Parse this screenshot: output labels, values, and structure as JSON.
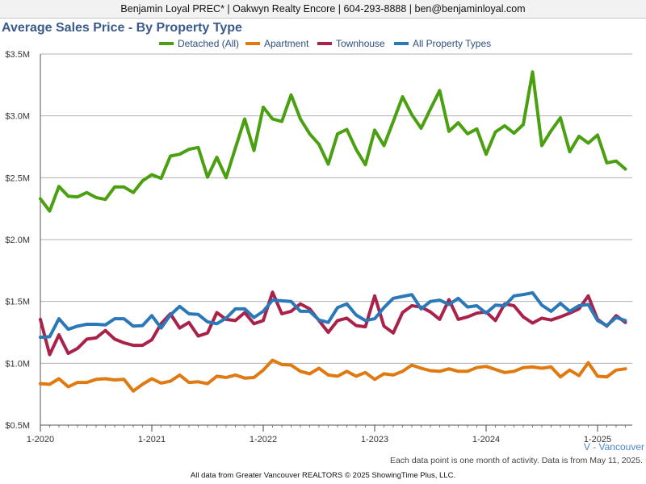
{
  "header": {
    "contact_line": "Benjamin Loyal PREC* | Oakwyn Realty Encore | 604-293-8888 | ben@benjaminloyal.com"
  },
  "footer": {
    "note": "Each data point is one month of activity. Data is from May 11, 2025.",
    "source": "All data from Greater Vancouver REALTORS © 2025 ShowingTime Plus, LLC."
  },
  "chart_data": {
    "type": "line",
    "title": "Average Sales Price - By Property Type",
    "xlabel": "",
    "ylabel": "",
    "region_label": "V - Vancouver",
    "ylim": [
      500000,
      3500000
    ],
    "y_ticks": [
      {
        "value": 500000,
        "label": "$0.5M"
      },
      {
        "value": 1000000,
        "label": "$1.0M"
      },
      {
        "value": 1500000,
        "label": "$1.5M"
      },
      {
        "value": 2000000,
        "label": "$2.0M"
      },
      {
        "value": 2500000,
        "label": "$2.5M"
      },
      {
        "value": 3000000,
        "label": "$3.0M"
      },
      {
        "value": 3500000,
        "label": "$3.5M"
      }
    ],
    "x_ticks": [
      {
        "month_index": 0,
        "label": "1-2020"
      },
      {
        "month_index": 12,
        "label": "1-2021"
      },
      {
        "month_index": 24,
        "label": "1-2022"
      },
      {
        "month_index": 36,
        "label": "1-2023"
      },
      {
        "month_index": 48,
        "label": "1-2024"
      },
      {
        "month_index": 60,
        "label": "1-2025"
      }
    ],
    "grid": "horizontal",
    "legend_position": "top-center",
    "series": [
      {
        "name": "Detached (All)",
        "color": "#4aa010",
        "values": [
          2330000,
          2230000,
          2430000,
          2350000,
          2345000,
          2380000,
          2340000,
          2325000,
          2425000,
          2425000,
          2380000,
          2475000,
          2525000,
          2495000,
          2675000,
          2690000,
          2730000,
          2745000,
          2505000,
          2665000,
          2500000,
          2740000,
          2975000,
          2720000,
          3070000,
          2975000,
          2955000,
          3170000,
          2975000,
          2855000,
          2770000,
          2610000,
          2855000,
          2890000,
          2730000,
          2605000,
          2885000,
          2760000,
          2955000,
          3155000,
          3010000,
          2900000,
          3055000,
          3205000,
          2875000,
          2945000,
          2855000,
          2895000,
          2690000,
          2870000,
          2920000,
          2860000,
          2930000,
          3355000,
          2760000,
          2880000,
          2985000,
          2710000,
          2835000,
          2780000,
          2845000,
          2620000,
          2635000,
          2570000
        ]
      },
      {
        "name": "Apartment",
        "color": "#e07a10",
        "values": [
          835000,
          830000,
          875000,
          810000,
          845000,
          845000,
          870000,
          875000,
          865000,
          870000,
          775000,
          830000,
          875000,
          840000,
          855000,
          905000,
          845000,
          850000,
          835000,
          895000,
          885000,
          905000,
          880000,
          885000,
          945000,
          1025000,
          990000,
          985000,
          935000,
          915000,
          960000,
          905000,
          895000,
          935000,
          895000,
          925000,
          870000,
          915000,
          905000,
          935000,
          985000,
          960000,
          940000,
          935000,
          955000,
          935000,
          935000,
          965000,
          975000,
          950000,
          925000,
          935000,
          965000,
          970000,
          960000,
          970000,
          890000,
          945000,
          900000,
          1005000,
          895000,
          890000,
          945000,
          955000
        ]
      },
      {
        "name": "Townhouse",
        "color": "#a8224a",
        "values": [
          1355000,
          1070000,
          1230000,
          1080000,
          1120000,
          1195000,
          1205000,
          1265000,
          1195000,
          1165000,
          1145000,
          1145000,
          1190000,
          1320000,
          1400000,
          1285000,
          1330000,
          1220000,
          1245000,
          1410000,
          1355000,
          1345000,
          1410000,
          1320000,
          1345000,
          1575000,
          1400000,
          1420000,
          1480000,
          1440000,
          1345000,
          1250000,
          1345000,
          1365000,
          1305000,
          1295000,
          1545000,
          1300000,
          1245000,
          1410000,
          1465000,
          1455000,
          1415000,
          1355000,
          1515000,
          1355000,
          1375000,
          1405000,
          1415000,
          1345000,
          1480000,
          1465000,
          1375000,
          1325000,
          1365000,
          1350000,
          1375000,
          1405000,
          1440000,
          1545000,
          1355000,
          1300000,
          1385000,
          1330000
        ]
      },
      {
        "name": "All Property Types",
        "color": "#2a78b8",
        "values": [
          1210000,
          1215000,
          1360000,
          1275000,
          1300000,
          1315000,
          1315000,
          1310000,
          1360000,
          1360000,
          1300000,
          1305000,
          1385000,
          1285000,
          1390000,
          1460000,
          1400000,
          1395000,
          1335000,
          1320000,
          1365000,
          1440000,
          1440000,
          1370000,
          1420000,
          1510000,
          1505000,
          1500000,
          1420000,
          1420000,
          1350000,
          1330000,
          1450000,
          1480000,
          1390000,
          1345000,
          1360000,
          1450000,
          1525000,
          1540000,
          1555000,
          1440000,
          1500000,
          1510000,
          1475000,
          1525000,
          1455000,
          1465000,
          1405000,
          1470000,
          1465000,
          1545000,
          1555000,
          1570000,
          1470000,
          1420000,
          1485000,
          1420000,
          1465000,
          1475000,
          1345000,
          1305000,
          1370000,
          1345000
        ]
      }
    ]
  }
}
